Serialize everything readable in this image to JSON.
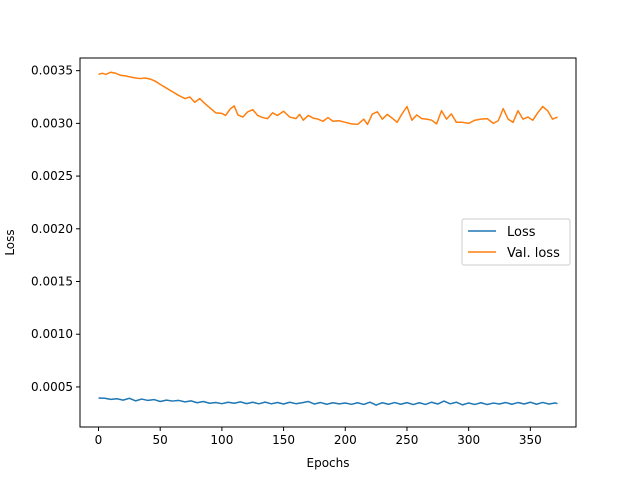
{
  "chart_data": {
    "type": "line",
    "title": "",
    "xlabel": "Epochs",
    "ylabel": "Loss",
    "xlim": [
      -15,
      387
    ],
    "ylim": [
      0.00012,
      0.00362
    ],
    "xticks": [
      0,
      50,
      100,
      150,
      200,
      250,
      300,
      350
    ],
    "xtick_labels": [
      "0",
      "50",
      "100",
      "150",
      "200",
      "250",
      "300",
      "350"
    ],
    "yticks": [
      0.0005,
      0.001,
      0.0015,
      0.002,
      0.0025,
      0.003,
      0.0035
    ],
    "ytick_labels": [
      "0.0005",
      "0.0010",
      "0.0015",
      "0.0020",
      "0.0025",
      "0.0030",
      "0.0035"
    ],
    "grid": false,
    "legend_position": "center-right",
    "series": [
      {
        "name": "Loss",
        "color": "#1f77b4",
        "points": [
          [
            0,
            0.000395
          ],
          [
            5,
            0.000393
          ],
          [
            10,
            0.000382
          ],
          [
            15,
            0.000388
          ],
          [
            20,
            0.000375
          ],
          [
            25,
            0.000392
          ],
          [
            30,
            0.000368
          ],
          [
            35,
            0.000385
          ],
          [
            40,
            0.000372
          ],
          [
            45,
            0.00038
          ],
          [
            50,
            0.000362
          ],
          [
            55,
            0.000375
          ],
          [
            60,
            0.000366
          ],
          [
            65,
            0.000372
          ],
          [
            70,
            0.000358
          ],
          [
            75,
            0.000368
          ],
          [
            80,
            0.00035
          ],
          [
            85,
            0.000362
          ],
          [
            90,
            0.000345
          ],
          [
            95,
            0.000352
          ],
          [
            100,
            0.000341
          ],
          [
            105,
            0.000355
          ],
          [
            110,
            0.000345
          ],
          [
            115,
            0.000358
          ],
          [
            120,
            0.000342
          ],
          [
            125,
            0.000355
          ],
          [
            130,
            0.00034
          ],
          [
            135,
            0.000356
          ],
          [
            140,
            0.00034
          ],
          [
            145,
            0.000352
          ],
          [
            150,
            0.000338
          ],
          [
            155,
            0.000355
          ],
          [
            160,
            0.000341
          ],
          [
            165,
            0.00035
          ],
          [
            170,
            0.000362
          ],
          [
            175,
            0.000338
          ],
          [
            180,
            0.000352
          ],
          [
            185,
            0.000336
          ],
          [
            190,
            0.00035
          ],
          [
            195,
            0.000339
          ],
          [
            200,
            0.000348
          ],
          [
            205,
            0.000335
          ],
          [
            210,
            0.00035
          ],
          [
            215,
            0.000334
          ],
          [
            220,
            0.000355
          ],
          [
            225,
            0.000328
          ],
          [
            230,
            0.00035
          ],
          [
            235,
            0.000336
          ],
          [
            240,
            0.000352
          ],
          [
            245,
            0.000336
          ],
          [
            250,
            0.000351
          ],
          [
            255,
            0.000333
          ],
          [
            260,
            0.00035
          ],
          [
            265,
            0.000334
          ],
          [
            270,
            0.000355
          ],
          [
            275,
            0.000338
          ],
          [
            280,
            0.000366
          ],
          [
            285,
            0.00034
          ],
          [
            290,
            0.000355
          ],
          [
            295,
            0.00033
          ],
          [
            300,
            0.000348
          ],
          [
            305,
            0.000334
          ],
          [
            310,
            0.00035
          ],
          [
            315,
            0.000333
          ],
          [
            320,
            0.000347
          ],
          [
            325,
            0.000338
          ],
          [
            330,
            0.000352
          ],
          [
            335,
            0.000336
          ],
          [
            340,
            0.000352
          ],
          [
            345,
            0.000338
          ],
          [
            350,
            0.000355
          ],
          [
            355,
            0.000336
          ],
          [
            360,
            0.000353
          ],
          [
            365,
            0.000338
          ],
          [
            370,
            0.000348
          ],
          [
            372,
            0.000342
          ]
        ]
      },
      {
        "name": "Val. loss",
        "color": "#ff7f0e",
        "points": [
          [
            0,
            0.003465
          ],
          [
            3,
            0.003475
          ],
          [
            6,
            0.003465
          ],
          [
            10,
            0.003485
          ],
          [
            14,
            0.003475
          ],
          [
            18,
            0.003455
          ],
          [
            22,
            0.00345
          ],
          [
            26,
            0.00344
          ],
          [
            30,
            0.00343
          ],
          [
            34,
            0.003425
          ],
          [
            38,
            0.00343
          ],
          [
            42,
            0.00342
          ],
          [
            46,
            0.0034
          ],
          [
            50,
            0.00337
          ],
          [
            55,
            0.003335
          ],
          [
            60,
            0.0033
          ],
          [
            65,
            0.003265
          ],
          [
            70,
            0.003235
          ],
          [
            74,
            0.00325
          ],
          [
            78,
            0.0032
          ],
          [
            82,
            0.003235
          ],
          [
            86,
            0.00319
          ],
          [
            90,
            0.00315
          ],
          [
            95,
            0.0031
          ],
          [
            100,
            0.003095
          ],
          [
            103,
            0.003075
          ],
          [
            107,
            0.00314
          ],
          [
            110,
            0.003165
          ],
          [
            113,
            0.00308
          ],
          [
            117,
            0.00306
          ],
          [
            121,
            0.00311
          ],
          [
            125,
            0.00313
          ],
          [
            129,
            0.003075
          ],
          [
            133,
            0.003055
          ],
          [
            137,
            0.003045
          ],
          [
            141,
            0.0031
          ],
          [
            145,
            0.003075
          ],
          [
            150,
            0.003115
          ],
          [
            155,
            0.00306
          ],
          [
            160,
            0.003045
          ],
          [
            163,
            0.003085
          ],
          [
            166,
            0.00303
          ],
          [
            170,
            0.003075
          ],
          [
            174,
            0.00305
          ],
          [
            178,
            0.00304
          ],
          [
            182,
            0.00302
          ],
          [
            186,
            0.003055
          ],
          [
            190,
            0.00302
          ],
          [
            195,
            0.003025
          ],
          [
            200,
            0.00301
          ],
          [
            205,
            0.002995
          ],
          [
            210,
            0.00299
          ],
          [
            215,
            0.00304
          ],
          [
            218,
            0.00299
          ],
          [
            222,
            0.00309
          ],
          [
            226,
            0.00311
          ],
          [
            230,
            0.00304
          ],
          [
            234,
            0.003085
          ],
          [
            238,
            0.00305
          ],
          [
            242,
            0.00301
          ],
          [
            246,
            0.00309
          ],
          [
            250,
            0.00316
          ],
          [
            254,
            0.00303
          ],
          [
            258,
            0.00308
          ],
          [
            262,
            0.003045
          ],
          [
            266,
            0.00304
          ],
          [
            270,
            0.00303
          ],
          [
            274,
            0.002995
          ],
          [
            278,
            0.00312
          ],
          [
            282,
            0.00304
          ],
          [
            286,
            0.00309
          ],
          [
            290,
            0.00301
          ],
          [
            295,
            0.00301
          ],
          [
            300,
            0.003
          ],
          [
            305,
            0.00303
          ],
          [
            310,
            0.00304
          ],
          [
            315,
            0.003045
          ],
          [
            320,
            0.003
          ],
          [
            324,
            0.003025
          ],
          [
            328,
            0.00314
          ],
          [
            332,
            0.00304
          ],
          [
            336,
            0.00301
          ],
          [
            340,
            0.00312
          ],
          [
            344,
            0.00304
          ],
          [
            348,
            0.00306
          ],
          [
            352,
            0.00303
          ],
          [
            356,
            0.0031
          ],
          [
            360,
            0.00316
          ],
          [
            364,
            0.00312
          ],
          [
            368,
            0.00304
          ],
          [
            372,
            0.00306
          ]
        ]
      }
    ]
  }
}
